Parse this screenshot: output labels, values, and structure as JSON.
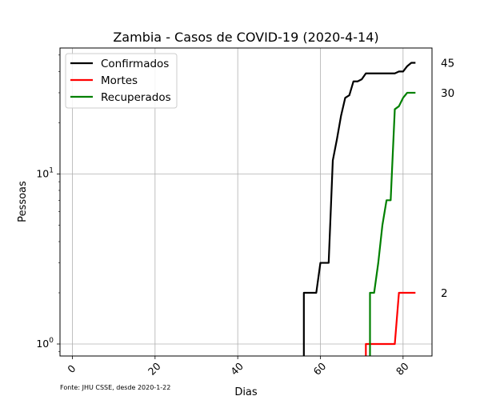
{
  "chart_data": {
    "type": "line",
    "title": "Zambia - Casos de COVID-19 (2020-4-14)",
    "xlabel": "Dias",
    "ylabel": "Pessoas",
    "yscale": "log",
    "grid": true,
    "legend_position": "top-left",
    "footnote": "Fonte: JHU CSSE, desde 2020-1-22",
    "xlim": [
      -3,
      87
    ],
    "ylim": [
      0.85,
      55
    ],
    "x_ticks": [
      0,
      20,
      40,
      60,
      80
    ],
    "x_tick_labels": [
      "0",
      "20",
      "40",
      "60",
      "80"
    ],
    "y_ticks": [
      {
        "value": 1,
        "base": "10",
        "exp": "0"
      },
      {
        "value": 10,
        "base": "10",
        "exp": "1"
      }
    ],
    "series": [
      {
        "name": "Confirmados",
        "color": "#000000",
        "end_label": "45",
        "points": [
          [
            56,
            0.5
          ],
          [
            56,
            2
          ],
          [
            59,
            2
          ],
          [
            60,
            3
          ],
          [
            62,
            3
          ],
          [
            63,
            12
          ],
          [
            64,
            16
          ],
          [
            65,
            22
          ],
          [
            66,
            28
          ],
          [
            67,
            29
          ],
          [
            68,
            35
          ],
          [
            69,
            35
          ],
          [
            70,
            36
          ],
          [
            71,
            39
          ],
          [
            72,
            39
          ],
          [
            73,
            39
          ],
          [
            74,
            39
          ],
          [
            75,
            39
          ],
          [
            76,
            39
          ],
          [
            77,
            39
          ],
          [
            78,
            39
          ],
          [
            79,
            40
          ],
          [
            80,
            40
          ],
          [
            81,
            43
          ],
          [
            82,
            45
          ],
          [
            83,
            45
          ]
        ]
      },
      {
        "name": "Mortes",
        "color": "#ff0000",
        "end_label": "2",
        "points": [
          [
            71,
            0.5
          ],
          [
            71,
            1
          ],
          [
            72,
            1
          ],
          [
            73,
            1
          ],
          [
            74,
            1
          ],
          [
            75,
            1
          ],
          [
            76,
            1
          ],
          [
            77,
            1
          ],
          [
            78,
            1
          ],
          [
            79,
            2
          ],
          [
            80,
            2
          ],
          [
            81,
            2
          ],
          [
            82,
            2
          ],
          [
            83,
            2
          ]
        ]
      },
      {
        "name": "Recuperados",
        "color": "#008000",
        "end_label": "30",
        "points": [
          [
            72,
            0.5
          ],
          [
            72,
            2
          ],
          [
            73,
            2
          ],
          [
            74,
            3
          ],
          [
            75,
            5
          ],
          [
            76,
            7
          ],
          [
            77,
            7
          ],
          [
            78,
            24
          ],
          [
            79,
            25
          ],
          [
            80,
            28
          ],
          [
            81,
            30
          ],
          [
            82,
            30
          ],
          [
            83,
            30
          ]
        ]
      }
    ]
  }
}
